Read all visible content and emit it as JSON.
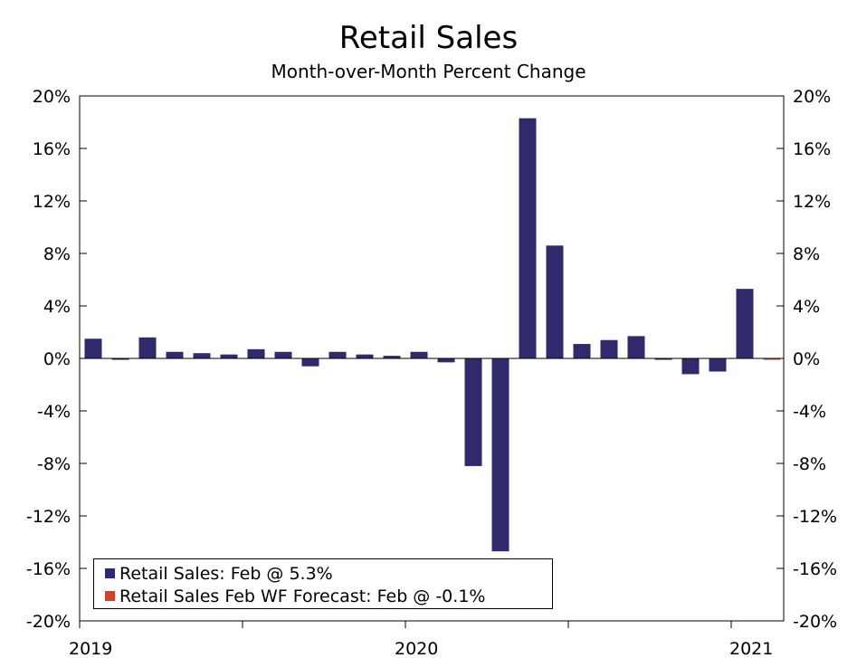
{
  "chart_data": {
    "type": "bar",
    "title": "Retail Sales",
    "subtitle": "Month-over-Month Percent Change",
    "ylim": [
      -20,
      20
    ],
    "y_ticks": [
      20,
      16,
      12,
      8,
      4,
      0,
      -4,
      -8,
      -12,
      -16,
      -20
    ],
    "y_tick_labels": [
      "20%",
      "16%",
      "12%",
      "8%",
      "4%",
      "0%",
      "-4%",
      "-8%",
      "-12%",
      "-16%",
      "-20%"
    ],
    "x_tick_labels": [
      "2019",
      "2020",
      "2021"
    ],
    "categories": [
      "Jan 2019",
      "Feb 2019",
      "Mar 2019",
      "Apr 2019",
      "May 2019",
      "Jun 2019",
      "Jul 2019",
      "Aug 2019",
      "Sep 2019",
      "Oct 2019",
      "Nov 2019",
      "Dec 2019",
      "Jan 2020",
      "Feb 2020",
      "Mar 2020",
      "Apr 2020",
      "May 2020",
      "Jun 2020",
      "Jul 2020",
      "Aug 2020",
      "Sep 2020",
      "Oct 2020",
      "Nov 2020",
      "Dec 2020",
      "Jan 2021",
      "Feb 2021"
    ],
    "series": [
      {
        "name": "Retail Sales: Feb @ 5.3%",
        "color": "#2e2a6b",
        "values": [
          1.5,
          -0.1,
          1.6,
          0.5,
          0.4,
          0.3,
          0.7,
          0.5,
          -0.6,
          0.5,
          0.3,
          0.2,
          0.5,
          -0.3,
          -8.2,
          -14.7,
          18.3,
          8.6,
          1.1,
          1.4,
          1.7,
          -0.1,
          -1.2,
          -1.0,
          5.3,
          null
        ]
      },
      {
        "name": "Retail Sales Feb WF Forecast: Feb @ -0.1%",
        "color": "#d6402b",
        "values": [
          null,
          null,
          null,
          null,
          null,
          null,
          null,
          null,
          null,
          null,
          null,
          null,
          null,
          null,
          null,
          null,
          null,
          null,
          null,
          null,
          null,
          null,
          null,
          null,
          null,
          -0.1
        ]
      }
    ],
    "legend_position": "bottom-left",
    "grid": false
  }
}
